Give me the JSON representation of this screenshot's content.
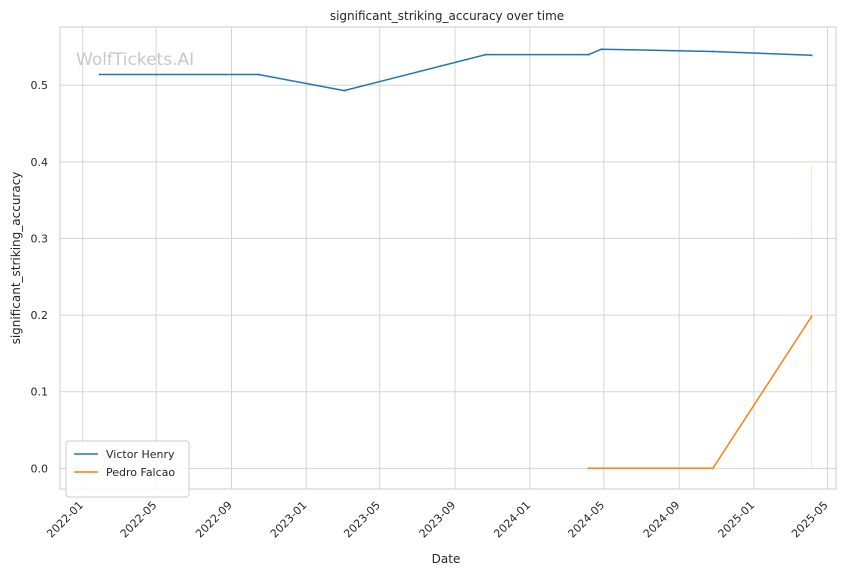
{
  "chart_data": {
    "type": "line",
    "title": "significant_striking_accuracy over time",
    "xlabel": "Date",
    "ylabel": "significant_striking_accuracy",
    "watermark": "WolfTickets.AI",
    "x_ticks": [
      "2022-01",
      "2022-05",
      "2022-09",
      "2023-01",
      "2023-05",
      "2023-09",
      "2024-01",
      "2024-05",
      "2024-09",
      "2025-01",
      "2025-05"
    ],
    "y_ticks": [
      "0.0",
      "0.1",
      "0.2",
      "0.3",
      "0.4",
      "0.5"
    ],
    "xlim": [
      "2021-11-25",
      "2025-05-15"
    ],
    "ylim": [
      -0.027,
      0.576
    ],
    "grid": true,
    "legend_position": "lower-left",
    "series": [
      {
        "name": "Victor Henry",
        "color": "#1f77b4",
        "x": [
          "2022-01-29",
          "2022-10-15",
          "2023-03-04",
          "2023-10-21",
          "2024-04-06",
          "2024-04-27",
          "2024-10-26",
          "2025-04-05"
        ],
        "y": [
          0.514,
          0.514,
          0.493,
          0.54,
          0.54,
          0.547,
          0.544,
          0.539
        ]
      },
      {
        "name": "Pedro Falcao",
        "color": "#ff7f0e",
        "x": [
          "2024-04-06",
          "2024-10-26",
          "2025-04-05"
        ],
        "y": [
          0.0,
          0.0,
          0.198
        ],
        "band": {
          "x": "2025-04-05",
          "low": 0.0,
          "high": 0.396
        }
      }
    ]
  }
}
